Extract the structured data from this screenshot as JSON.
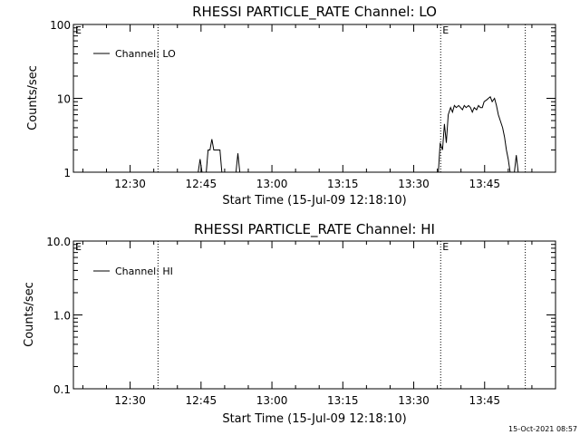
{
  "footer": {
    "timestamp": "15-Oct-2021 08:57"
  },
  "colors": {
    "background": "#ffffff",
    "ink": "#000000"
  },
  "chart_data": [
    {
      "type": "line",
      "title": "RHESSI PARTICLE_RATE Channel: LO",
      "xlabel": "Start Time (15-Jul-09 12:18:10)",
      "ylabel": "Counts/sec",
      "yscale": "log",
      "ylim": [
        1,
        100
      ],
      "yticks": [
        1,
        10,
        100
      ],
      "ytick_labels": [
        "1",
        "10",
        "100"
      ],
      "xlim_minutes": [
        0,
        102
      ],
      "xticks_minutes": [
        12,
        27,
        42,
        57,
        72,
        87
      ],
      "xtick_labels": [
        "12:30",
        "12:45",
        "13:00",
        "13:15",
        "13:30",
        "13:45"
      ],
      "grid": false,
      "legend": {
        "position": "top-left",
        "entries": [
          "Channel: LO"
        ]
      },
      "annotations": [
        {
          "text": "E",
          "x_minutes": 0
        },
        {
          "text": "E",
          "x_minutes": 77.7
        }
      ],
      "event_lines_minutes": [
        17.9,
        77.7,
        95.6
      ],
      "series": [
        {
          "name": "Channel: LO",
          "segments": [
            [
              [
                26.4,
                1.0
              ],
              [
                26.8,
                1.5
              ],
              [
                27.2,
                1.0
              ]
            ],
            [
              [
                28.1,
                1.0
              ],
              [
                28.5,
                2.0
              ],
              [
                28.9,
                2.0
              ],
              [
                29.3,
                2.8
              ],
              [
                29.7,
                2.0
              ],
              [
                30.2,
                2.0
              ],
              [
                30.6,
                2.0
              ],
              [
                31.0,
                2.0
              ],
              [
                31.4,
                1.0
              ]
            ],
            [
              [
                34.4,
                1.0
              ],
              [
                34.8,
                1.8
              ],
              [
                35.2,
                1.0
              ]
            ],
            [
              [
                77.2,
                1.0
              ],
              [
                77.6,
                2.5
              ],
              [
                78.1,
                2.0
              ],
              [
                78.5,
                4.5
              ],
              [
                78.9,
                2.5
              ],
              [
                79.3,
                6.0
              ],
              [
                79.8,
                7.5
              ],
              [
                80.2,
                6.5
              ],
              [
                80.6,
                8.0
              ],
              [
                81.0,
                7.5
              ],
              [
                81.5,
                8.0
              ],
              [
                81.9,
                7.5
              ],
              [
                82.3,
                7.0
              ],
              [
                82.7,
                8.0
              ],
              [
                83.1,
                7.5
              ],
              [
                83.6,
                8.0
              ],
              [
                84.0,
                7.5
              ],
              [
                84.4,
                6.5
              ],
              [
                84.8,
                7.5
              ],
              [
                85.3,
                7.0
              ],
              [
                85.7,
                8.0
              ],
              [
                86.1,
                7.5
              ],
              [
                86.5,
                7.5
              ],
              [
                86.9,
                9.0
              ],
              [
                87.4,
                9.5
              ],
              [
                87.8,
                10.0
              ],
              [
                88.2,
                10.5
              ],
              [
                88.6,
                9.0
              ],
              [
                89.1,
                10.0
              ],
              [
                89.5,
                8.0
              ],
              [
                89.9,
                6.0
              ],
              [
                90.3,
                5.0
              ],
              [
                90.8,
                4.0
              ],
              [
                91.2,
                3.0
              ],
              [
                91.6,
                2.0
              ],
              [
                92.0,
                1.5
              ],
              [
                92.4,
                1.0
              ]
            ],
            [
              [
                93.3,
                1.0
              ],
              [
                93.7,
                1.7
              ],
              [
                94.1,
                1.0
              ]
            ]
          ]
        }
      ]
    },
    {
      "type": "line",
      "title": "RHESSI PARTICLE_RATE Channel: HI",
      "xlabel": "Start Time (15-Jul-09 12:18:10)",
      "ylabel": "Counts/sec",
      "yscale": "log",
      "ylim": [
        0.1,
        10
      ],
      "yticks": [
        0.1,
        1.0,
        10.0
      ],
      "ytick_labels": [
        "0.1",
        "1.0",
        "10.0"
      ],
      "xlim_minutes": [
        0,
        102
      ],
      "xticks_minutes": [
        12,
        27,
        42,
        57,
        72,
        87
      ],
      "xtick_labels": [
        "12:30",
        "12:45",
        "13:00",
        "13:15",
        "13:30",
        "13:45"
      ],
      "grid": false,
      "legend": {
        "position": "top-left",
        "entries": [
          "Channel: HI"
        ]
      },
      "annotations": [
        {
          "text": "E",
          "x_minutes": 0
        },
        {
          "text": "E",
          "x_minutes": 77.7
        }
      ],
      "event_lines_minutes": [
        17.9,
        77.7,
        95.6
      ],
      "series": [
        {
          "name": "Channel: HI",
          "segments": []
        }
      ]
    }
  ]
}
